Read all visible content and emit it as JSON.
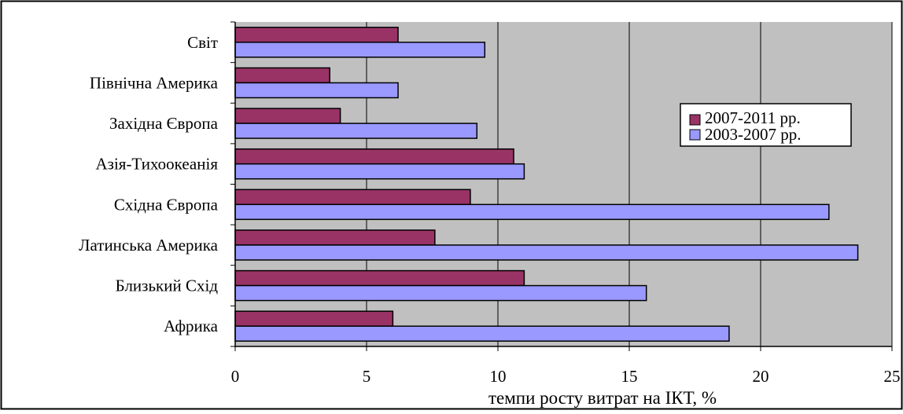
{
  "chart_data": {
    "type": "bar",
    "orientation": "horizontal",
    "categories": [
      "Світ",
      "Північна Америка",
      "Західна Європа",
      "Азія-Тихоокеанія",
      "Східна Європа",
      "Латинська Америка",
      "Близький Схід",
      "Африка"
    ],
    "series": [
      {
        "name": "2007-2011 рр.",
        "color": "#993366",
        "values": [
          6.2,
          3.6,
          4.0,
          10.6,
          8.95,
          7.6,
          11.0,
          6.0
        ]
      },
      {
        "name": "2003-2007 рр.",
        "color": "#9999ff",
        "values": [
          9.5,
          6.2,
          9.2,
          11.0,
          22.6,
          23.7,
          15.65,
          18.8
        ]
      }
    ],
    "xlabel": "темпи росту витрат на ІКТ, %",
    "xlim": [
      0,
      25
    ],
    "xticks": [
      0,
      5,
      10,
      15,
      20,
      25
    ],
    "grid": "vertical",
    "plot_background": "#c0c0c0",
    "legend_position": "right"
  }
}
